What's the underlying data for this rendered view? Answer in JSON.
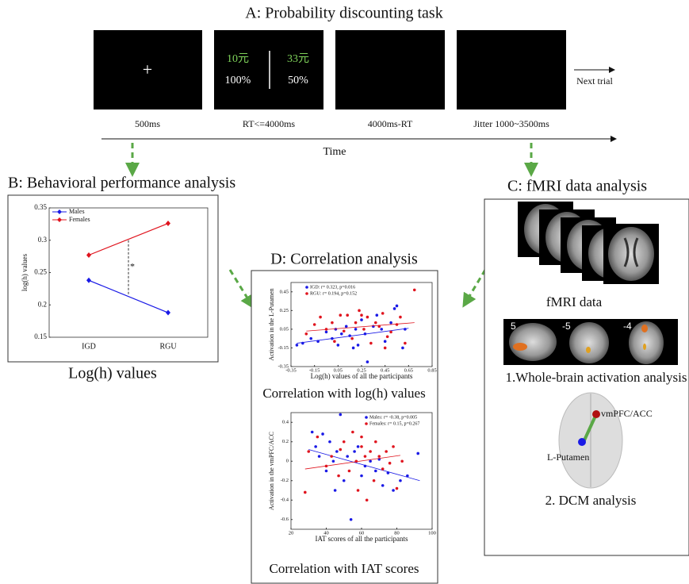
{
  "panel_a": {
    "title": "A: Probability discounting task",
    "screens": [
      {
        "content": "+",
        "label": "500ms"
      },
      {
        "left_amount": "10元",
        "right_amount": "33元",
        "left_prob": "100%",
        "right_prob": "50%",
        "label": "RT<=4000ms"
      },
      {
        "label": "4000ms-RT"
      },
      {
        "label": "Jitter 1000~3500ms"
      }
    ],
    "next": "Next trial",
    "axis": "Time"
  },
  "panel_b": {
    "title": "B: Behavioral performance analysis",
    "caption": "Log(h) values"
  },
  "panel_c": {
    "title": "C: fMRI data analysis",
    "fmri_caption": "fMRI data",
    "slice_labels": [
      "5",
      "-5",
      "-4"
    ],
    "activation_caption": "1.Whole-brain activation analysis",
    "region_top": "vmPFC/ACC",
    "region_bottom": "L-Putamen",
    "dcm_caption": "2. DCM analysis"
  },
  "panel_d": {
    "title": "D: Correlation analysis",
    "caption_top": "Correlation with log(h) values",
    "caption_bottom": "Correlation with IAT scores"
  },
  "chart_data": [
    {
      "type": "line",
      "categories": [
        "IGD",
        "RGU"
      ],
      "y_label": "log(h) values",
      "series": [
        {
          "name": "Males",
          "color": "#1a1ae6",
          "values": [
            0.238,
            0.188
          ]
        },
        {
          "name": "Females",
          "color": "#e0141e",
          "values": [
            0.277,
            0.326
          ]
        }
      ],
      "ylim": [
        0.15,
        0.35
      ],
      "yticks": [
        0.15,
        0.2,
        0.25,
        0.3,
        0.35
      ],
      "annotation": "*"
    },
    {
      "type": "scatter",
      "x_label": "Log(h) values of all the participants",
      "y_label": "Activation in the L-Putamen",
      "xlim": [
        -0.35,
        0.85
      ],
      "xticks": [
        -0.35,
        -0.15,
        0.05,
        0.25,
        0.45,
        0.65,
        0.85
      ],
      "ylim": [
        -0.35,
        0.55
      ],
      "yticks": [
        -0.35,
        -0.15,
        0.05,
        0.25,
        0.45
      ],
      "series": [
        {
          "name": "IGD: r= 0.323, p=0.016",
          "color": "#1a1ae6",
          "x": [
            -0.3,
            -0.25,
            -0.18,
            -0.12,
            -0.05,
            0,
            0.03,
            0.08,
            0.12,
            0.15,
            0.2,
            0.22,
            0.25,
            0.28,
            0.3,
            0.35,
            0.38,
            0.42,
            0.45,
            0.5,
            0.53,
            0.55,
            0.6,
            0.62,
            0.18,
            0.05
          ],
          "values": [
            -0.12,
            -0.1,
            -0.05,
            -0.08,
            0.02,
            -0.05,
            0.05,
            0,
            0.08,
            -0.02,
            0.05,
            -0.12,
            0.15,
            0,
            -0.3,
            0.08,
            0.2,
            0.05,
            -0.08,
            0.12,
            0.27,
            0.3,
            -0.15,
            0.05,
            -0.15,
            -0.12
          ],
          "fit": {
            "x": [
              -0.3,
              0.65
            ],
            "values": [
              -0.1,
              0.06
            ]
          }
        },
        {
          "name": "RGU: r= 0.194, p=0.152",
          "color": "#e0141e",
          "x": [
            -0.22,
            -0.15,
            -0.1,
            -0.05,
            0,
            0.02,
            0.07,
            0.1,
            0.13,
            0.17,
            0.2,
            0.23,
            0.27,
            0.3,
            0.33,
            0.37,
            0.4,
            0.43,
            0.47,
            0.5,
            0.55,
            0.58,
            0.62,
            0.7,
            0.25,
            0.45
          ],
          "values": [
            0,
            0.1,
            0.18,
            0.05,
            0.12,
            -0.08,
            0.2,
            0.03,
            0.2,
            -0.05,
            0.12,
            0.25,
            0.05,
            0.18,
            -0.1,
            0.12,
            0.08,
            0.22,
            -0.03,
            0.02,
            0.1,
            0.18,
            -0.1,
            0.47,
            0.2,
            -0.15
          ],
          "fit": {
            "x": [
              -0.22,
              0.7
            ],
            "values": [
              0.03,
              0.12
            ]
          }
        }
      ]
    },
    {
      "type": "scatter",
      "x_label": "IAT scores of all the participants",
      "y_label": "Activation in the vmPFC/ACC",
      "xlim": [
        20,
        100
      ],
      "xticks": [
        20,
        40,
        60,
        80,
        100
      ],
      "ylim": [
        -0.7,
        0.5
      ],
      "yticks": [
        -0.6,
        -0.4,
        -0.2,
        0,
        0.2,
        0.4
      ],
      "series": [
        {
          "name": "Males: r= -0.38, p=0.005",
          "color": "#1a1ae6",
          "x": [
            32,
            34,
            36,
            38,
            40,
            42,
            44,
            46,
            48,
            50,
            52,
            54,
            56,
            58,
            60,
            62,
            65,
            68,
            70,
            72,
            75,
            78,
            82,
            86,
            92,
            45
          ],
          "values": [
            0.3,
            0.15,
            0.05,
            0.28,
            -0.1,
            0.2,
            0,
            0.1,
            0.48,
            -0.2,
            0.05,
            -0.6,
            0.1,
            0.15,
            -0.15,
            -0.05,
            0,
            -0.1,
            0.02,
            -0.25,
            -0.12,
            -0.3,
            -0.2,
            -0.15,
            0.08,
            -0.3
          ],
          "fit": {
            "x": [
              30,
              93
            ],
            "values": [
              0.12,
              -0.2
            ]
          }
        },
        {
          "name": "Females: r= 0.15, p=0.267",
          "color": "#e0141e",
          "x": [
            28,
            30,
            35,
            40,
            43,
            47,
            50,
            53,
            55,
            57,
            58,
            60,
            62,
            63,
            65,
            67,
            68,
            70,
            72,
            74,
            76,
            78,
            80,
            83,
            60,
            48
          ],
          "values": [
            -0.32,
            0.1,
            0.25,
            -0.05,
            0.05,
            -0.15,
            0.2,
            -0.1,
            0.3,
            0,
            -0.3,
            0.15,
            0.05,
            -0.4,
            0.1,
            -0.2,
            0.2,
            0.05,
            -0.08,
            0.1,
            -0.02,
            0.15,
            -0.28,
            0,
            0.25,
            0.12
          ],
          "fit": {
            "x": [
              28,
              82
            ],
            "values": [
              -0.08,
              0.06
            ]
          }
        }
      ]
    }
  ]
}
